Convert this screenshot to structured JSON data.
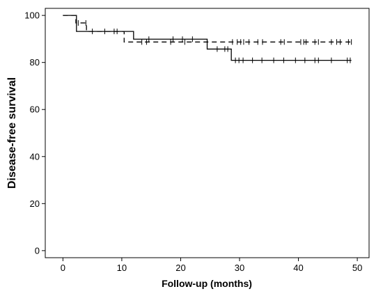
{
  "chart_data": {
    "type": "line",
    "xlabel": "Follow-up (months)",
    "ylabel": "Disease-free survival",
    "xlim": [
      -3,
      52
    ],
    "ylim": [
      -3,
      103
    ],
    "x_ticks": [
      0,
      10,
      20,
      30,
      40,
      50
    ],
    "y_ticks": [
      0,
      20,
      40,
      60,
      80,
      100
    ],
    "grid": false,
    "legend": "none",
    "series": [
      {
        "style": "solid",
        "steps": [
          {
            "x": 0,
            "y": 100
          },
          {
            "x": 2.3,
            "y": 93.2
          },
          {
            "x": 12,
            "y": 89.9
          },
          {
            "x": 24.5,
            "y": 85.7
          },
          {
            "x": 28.6,
            "y": 80.9
          },
          {
            "x": 49,
            "y": 80.9
          }
        ],
        "censored": [
          {
            "x": 5,
            "y": 93.2
          },
          {
            "x": 9.2,
            "y": 93.2
          },
          {
            "x": 14.6,
            "y": 89.9
          },
          {
            "x": 18.7,
            "y": 89.9
          },
          {
            "x": 20.3,
            "y": 89.9
          },
          {
            "x": 22,
            "y": 89.9
          },
          {
            "x": 26.2,
            "y": 85.7
          },
          {
            "x": 27.5,
            "y": 85.7
          },
          {
            "x": 28,
            "y": 85.7
          },
          {
            "x": 29.3,
            "y": 80.9
          },
          {
            "x": 29.9,
            "y": 80.9
          },
          {
            "x": 30.6,
            "y": 80.9
          },
          {
            "x": 32.2,
            "y": 80.9
          },
          {
            "x": 33.8,
            "y": 80.9
          },
          {
            "x": 35.8,
            "y": 80.9
          },
          {
            "x": 37.5,
            "y": 80.9
          },
          {
            "x": 39.5,
            "y": 80.9
          },
          {
            "x": 41.1,
            "y": 80.9
          },
          {
            "x": 42.8,
            "y": 80.9
          },
          {
            "x": 43.4,
            "y": 80.9
          },
          {
            "x": 45.6,
            "y": 80.9
          },
          {
            "x": 48.3,
            "y": 80.9
          },
          {
            "x": 48.8,
            "y": 80.9
          }
        ]
      },
      {
        "style": "dashed",
        "steps": [
          {
            "x": 0,
            "y": 100
          },
          {
            "x": 2.2,
            "y": 96.8
          },
          {
            "x": 4,
            "y": 93.2
          },
          {
            "x": 10.4,
            "y": 88.7
          },
          {
            "x": 49,
            "y": 88.7
          }
        ],
        "censored": [
          {
            "x": 2.6,
            "y": 96.8
          },
          {
            "x": 3.9,
            "y": 96.8
          },
          {
            "x": 7.1,
            "y": 93.2
          },
          {
            "x": 8.7,
            "y": 93.2
          },
          {
            "x": 13.4,
            "y": 88.7
          },
          {
            "x": 14.2,
            "y": 88.7
          },
          {
            "x": 18.3,
            "y": 88.7
          },
          {
            "x": 20.7,
            "y": 88.7
          },
          {
            "x": 28.8,
            "y": 88.7
          },
          {
            "x": 29.6,
            "y": 88.7
          },
          {
            "x": 30.2,
            "y": 88.7
          },
          {
            "x": 30.7,
            "y": 88.7
          },
          {
            "x": 31.6,
            "y": 88.7
          },
          {
            "x": 33.1,
            "y": 88.7
          },
          {
            "x": 33.9,
            "y": 88.7
          },
          {
            "x": 37,
            "y": 88.7
          },
          {
            "x": 37.6,
            "y": 88.7
          },
          {
            "x": 40.4,
            "y": 88.7
          },
          {
            "x": 40.9,
            "y": 88.7
          },
          {
            "x": 41.3,
            "y": 88.7
          },
          {
            "x": 42.8,
            "y": 88.7
          },
          {
            "x": 43.4,
            "y": 88.7
          },
          {
            "x": 45.6,
            "y": 88.7
          },
          {
            "x": 46.5,
            "y": 88.7
          },
          {
            "x": 47.1,
            "y": 88.7
          },
          {
            "x": 48.5,
            "y": 88.7
          },
          {
            "x": 49,
            "y": 88.7
          }
        ]
      }
    ]
  }
}
